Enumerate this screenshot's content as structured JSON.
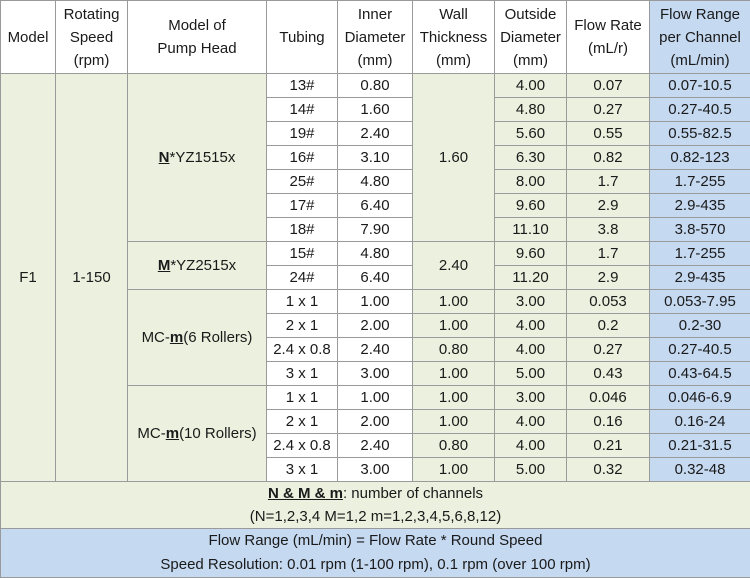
{
  "headers": {
    "model": "Model",
    "speed": [
      "Rotating",
      "Speed",
      "(rpm)"
    ],
    "pump_head": [
      "Model of",
      "Pump Head"
    ],
    "tubing": "Tubing",
    "inner": [
      "Inner",
      "Diameter",
      "(mm)"
    ],
    "wall": [
      "Wall",
      "Thickness",
      "(mm)"
    ],
    "outside": [
      "Outside",
      "Diameter",
      "(mm)"
    ],
    "flow_rate": [
      "Flow Rate",
      "(mL/r)"
    ],
    "flow_range": [
      "Flow Range",
      "per Channel",
      "(mL/min)"
    ]
  },
  "model": "F1",
  "speed": "1-150",
  "groups": [
    {
      "pump_bold": "N",
      "pump_rest": "*YZ1515x",
      "wall": "1.60",
      "rows": [
        {
          "tubing": "13#",
          "inner": "0.80",
          "outside": "4.00",
          "flow_rate": "0.07",
          "flow_range": "0.07-10.5"
        },
        {
          "tubing": "14#",
          "inner": "1.60",
          "outside": "4.80",
          "flow_rate": "0.27",
          "flow_range": "0.27-40.5"
        },
        {
          "tubing": "19#",
          "inner": "2.40",
          "outside": "5.60",
          "flow_rate": "0.55",
          "flow_range": "0.55-82.5"
        },
        {
          "tubing": "16#",
          "inner": "3.10",
          "outside": "6.30",
          "flow_rate": "0.82",
          "flow_range": "0.82-123"
        },
        {
          "tubing": "25#",
          "inner": "4.80",
          "outside": "8.00",
          "flow_rate": "1.7",
          "flow_range": "1.7-255"
        },
        {
          "tubing": "17#",
          "inner": "6.40",
          "outside": "9.60",
          "flow_rate": "2.9",
          "flow_range": "2.9-435"
        },
        {
          "tubing": "18#",
          "inner": "7.90",
          "outside": "11.10",
          "flow_rate": "3.8",
          "flow_range": "3.8-570"
        }
      ]
    },
    {
      "pump_bold": "M",
      "pump_rest": "*YZ2515x",
      "wall": "2.40",
      "rows": [
        {
          "tubing": "15#",
          "inner": "4.80",
          "outside": "9.60",
          "flow_rate": "1.7",
          "flow_range": "1.7-255"
        },
        {
          "tubing": "24#",
          "inner": "6.40",
          "outside": "11.20",
          "flow_rate": "2.9",
          "flow_range": "2.9-435"
        }
      ]
    },
    {
      "pump_pre": "MC-",
      "pump_bold": "m",
      "pump_rest": "(6 Rollers)",
      "rows": [
        {
          "tubing": "1 x 1",
          "inner": "1.00",
          "wall": "1.00",
          "outside": "3.00",
          "flow_rate": "0.053",
          "flow_range": "0.053-7.95"
        },
        {
          "tubing": "2 x 1",
          "inner": "2.00",
          "wall": "1.00",
          "outside": "4.00",
          "flow_rate": "0.2",
          "flow_range": "0.2-30"
        },
        {
          "tubing": "2.4 x 0.8",
          "inner": "2.40",
          "wall": "0.80",
          "outside": "4.00",
          "flow_rate": "0.27",
          "flow_range": "0.27-40.5"
        },
        {
          "tubing": "3 x 1",
          "inner": "3.00",
          "wall": "1.00",
          "outside": "5.00",
          "flow_rate": "0.43",
          "flow_range": "0.43-64.5"
        }
      ]
    },
    {
      "pump_pre": "MC-",
      "pump_bold": "m",
      "pump_rest": "(10 Rollers)",
      "rows": [
        {
          "tubing": "1 x 1",
          "inner": "1.00",
          "wall": "1.00",
          "outside": "3.00",
          "flow_rate": "0.046",
          "flow_range": "0.046-6.9"
        },
        {
          "tubing": "2 x 1",
          "inner": "2.00",
          "wall": "1.00",
          "outside": "4.00",
          "flow_rate": "0.16",
          "flow_range": "0.16-24"
        },
        {
          "tubing": "2.4 x 0.8",
          "inner": "2.40",
          "wall": "0.80",
          "outside": "4.00",
          "flow_rate": "0.21",
          "flow_range": "0.21-31.5"
        },
        {
          "tubing": "3 x 1",
          "inner": "3.00",
          "wall": "1.00",
          "outside": "5.00",
          "flow_rate": "0.32",
          "flow_range": "0.32-48"
        }
      ]
    }
  ],
  "notes": {
    "channels_bold": "N & M & m",
    "channels_text": ": number of channels",
    "channels_values": "(N=1,2,3,4   M=1,2   m=1,2,3,4,5,6,8,12)",
    "formula": "Flow Range (mL/min) =  Flow Rate * Round  Speed",
    "resolution": "Speed Resolution: 0.01 rpm (1-100 rpm), 0.1 rpm (over 100 rpm)"
  }
}
